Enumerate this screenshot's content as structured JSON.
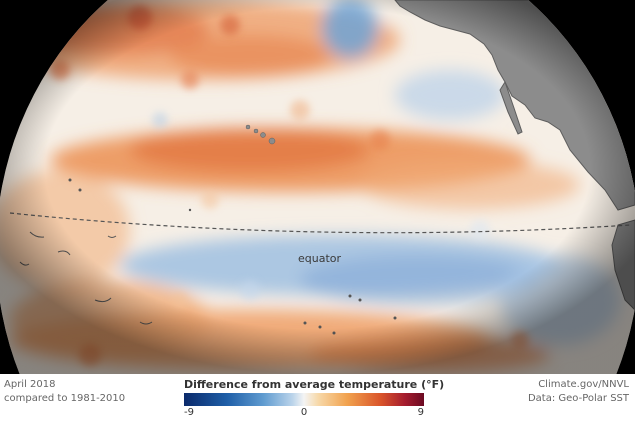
{
  "map": {
    "equator_label": "equator",
    "land_color": "#8c8c8c",
    "background_color": "#000000"
  },
  "footer": {
    "date_label": "April 2018",
    "comparison_label": "compared to 1981-2010",
    "credit_label": "Climate.gov/NNVL",
    "data_label": "Data: Geo-Polar SST"
  },
  "legend": {
    "title": "Difference from average temperature (°F)",
    "min_label": "-9",
    "mid_label": "0",
    "max_label": "9",
    "scale": {
      "min": -9,
      "mid": 0,
      "max": 9
    },
    "colors": [
      "#0b2a6b",
      "#5f9bd0",
      "#f4f4f4",
      "#f1a24e",
      "#a51c2e",
      "#6b0a22"
    ]
  }
}
